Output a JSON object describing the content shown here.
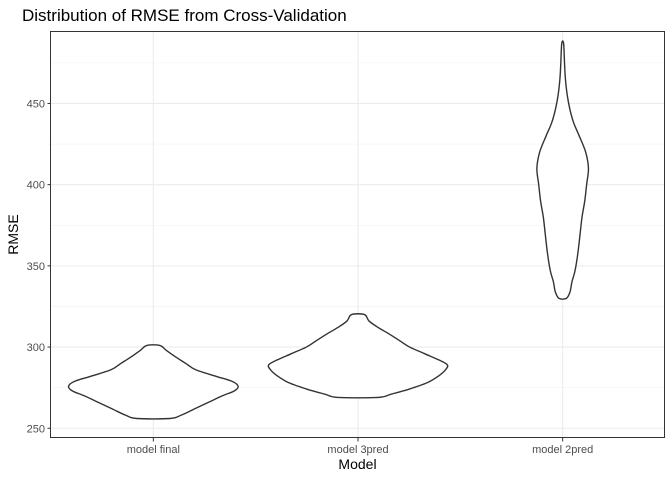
{
  "chart_data": {
    "type": "violin",
    "title": "Distribution of RMSE from Cross-Validation",
    "xlabel": "Model",
    "ylabel": "RMSE",
    "categories": [
      "model final",
      "model 3pred",
      "model 2pred"
    ],
    "ylim": [
      244,
      494
    ],
    "yticks": [
      250,
      300,
      350,
      400,
      450
    ],
    "grid": true,
    "violins": [
      {
        "name": "model final",
        "min": 256,
        "max": 301,
        "profile": [
          [
            256,
            0.18
          ],
          [
            258,
            0.3
          ],
          [
            262,
            0.45
          ],
          [
            266,
            0.6
          ],
          [
            270,
            0.75
          ],
          [
            273,
            0.88
          ],
          [
            276,
            0.92
          ],
          [
            279,
            0.85
          ],
          [
            282,
            0.68
          ],
          [
            286,
            0.46
          ],
          [
            290,
            0.35
          ],
          [
            294,
            0.24
          ],
          [
            298,
            0.14
          ],
          [
            301,
            0.07
          ]
        ]
      },
      {
        "name": "model 3pred",
        "min": 269,
        "max": 320,
        "profile": [
          [
            269,
            0.22
          ],
          [
            271,
            0.36
          ],
          [
            274,
            0.55
          ],
          [
            278,
            0.75
          ],
          [
            282,
            0.87
          ],
          [
            286,
            0.95
          ],
          [
            289,
            0.97
          ],
          [
            292,
            0.88
          ],
          [
            296,
            0.72
          ],
          [
            300,
            0.56
          ],
          [
            304,
            0.45
          ],
          [
            308,
            0.34
          ],
          [
            312,
            0.22
          ],
          [
            316,
            0.12
          ],
          [
            320,
            0.07
          ]
        ]
      },
      {
        "name": "model 2pred",
        "min": 330,
        "max": 487,
        "profile": [
          [
            330,
            0.04
          ],
          [
            334,
            0.08
          ],
          [
            340,
            0.1
          ],
          [
            346,
            0.13
          ],
          [
            352,
            0.15
          ],
          [
            360,
            0.17
          ],
          [
            370,
            0.19
          ],
          [
            380,
            0.21
          ],
          [
            390,
            0.24
          ],
          [
            400,
            0.26
          ],
          [
            410,
            0.28
          ],
          [
            420,
            0.25
          ],
          [
            430,
            0.18
          ],
          [
            438,
            0.12
          ],
          [
            446,
            0.08
          ],
          [
            455,
            0.05
          ],
          [
            465,
            0.03
          ],
          [
            475,
            0.02
          ],
          [
            487,
            0.01
          ]
        ]
      }
    ]
  }
}
